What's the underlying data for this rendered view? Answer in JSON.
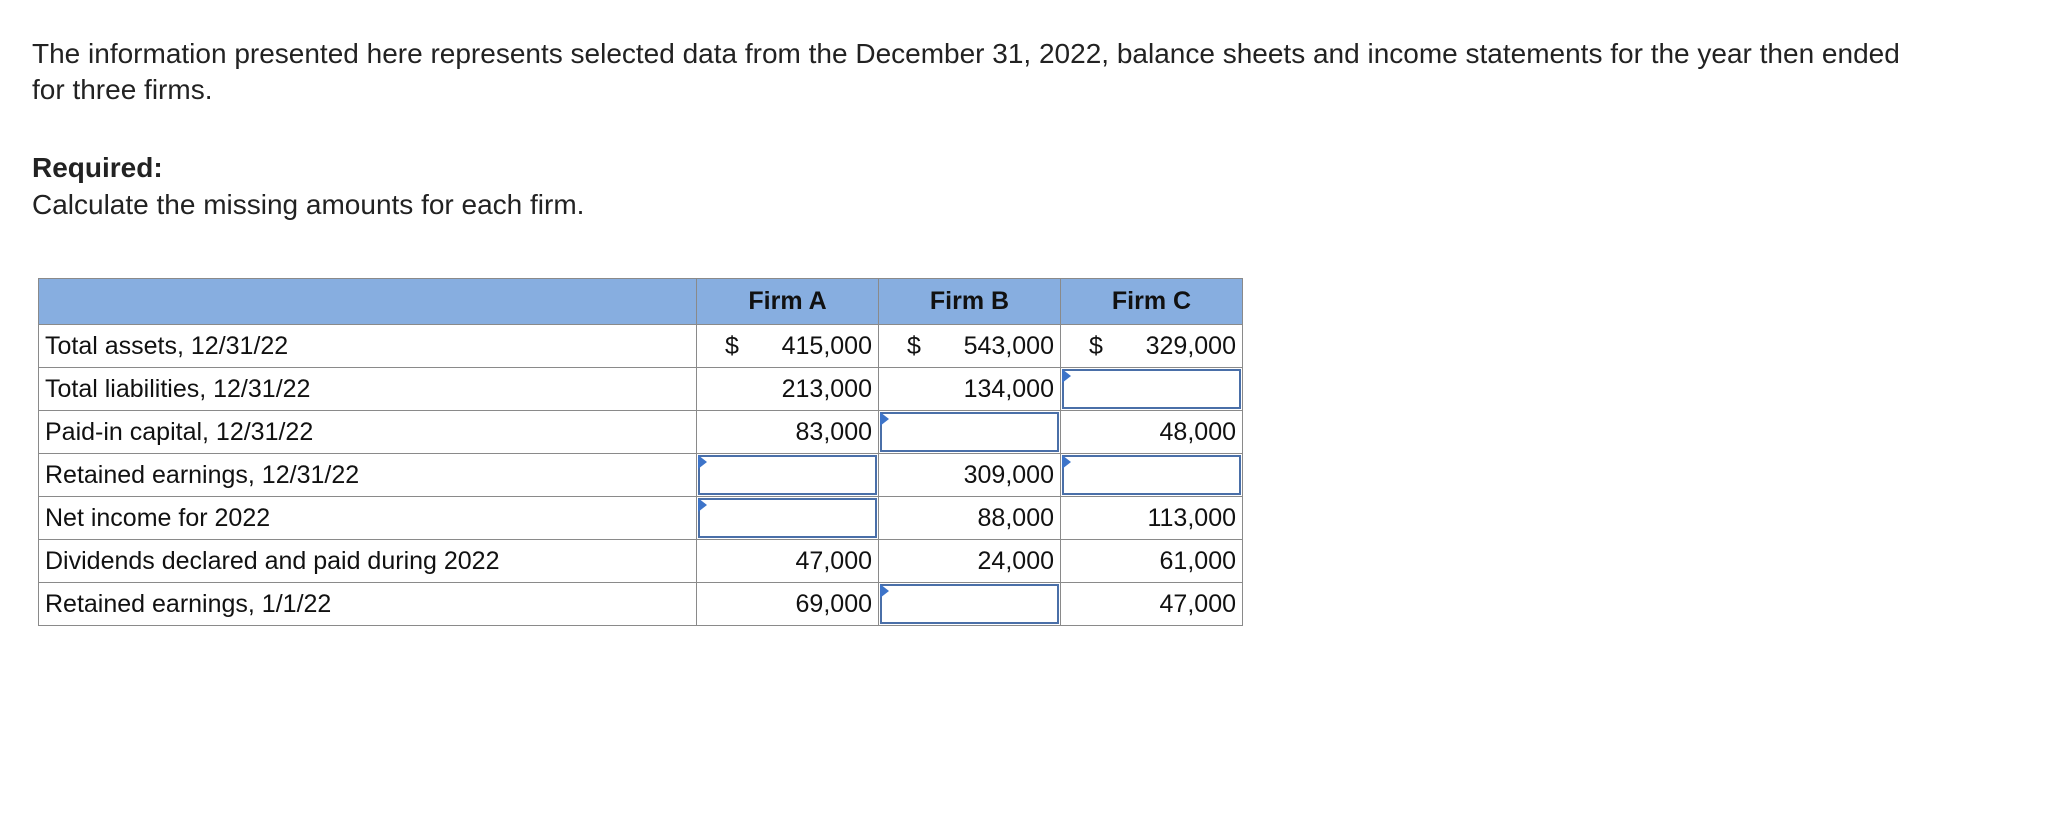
{
  "intro_text": "The information presented here represents selected data from the December 31, 2022, balance sheets and income statements for the year then ended for three firms.",
  "required_heading": "Required:",
  "required_text": "Calculate the missing amounts for each firm.",
  "table": {
    "headers": [
      "",
      "Firm A",
      "Firm B",
      "Firm C"
    ],
    "currency_symbol": "$",
    "rows": [
      {
        "label": "Total assets, 12/31/22",
        "firm_a": "415,000",
        "firm_b": "543,000",
        "firm_c": "329,000"
      },
      {
        "label": "Total liabilities, 12/31/22",
        "firm_a": "213,000",
        "firm_b": "134,000",
        "firm_c": ""
      },
      {
        "label": "Paid-in capital, 12/31/22",
        "firm_a": "83,000",
        "firm_b": "",
        "firm_c": "48,000"
      },
      {
        "label": "Retained earnings, 12/31/22",
        "firm_a": "",
        "firm_b": "309,000",
        "firm_c": ""
      },
      {
        "label": "Net income for 2022",
        "firm_a": "",
        "firm_b": "88,000",
        "firm_c": "113,000"
      },
      {
        "label": "Dividends declared and paid during 2022",
        "firm_a": "47,000",
        "firm_b": "24,000",
        "firm_c": "61,000"
      },
      {
        "label": "Retained earnings, 1/1/22",
        "firm_a": "69,000",
        "firm_b": "",
        "firm_c": "47,000"
      }
    ]
  },
  "colors": {
    "header_bg": "#87aee0",
    "input_border": "#4a6fa8",
    "input_marker": "#3d74c9"
  }
}
